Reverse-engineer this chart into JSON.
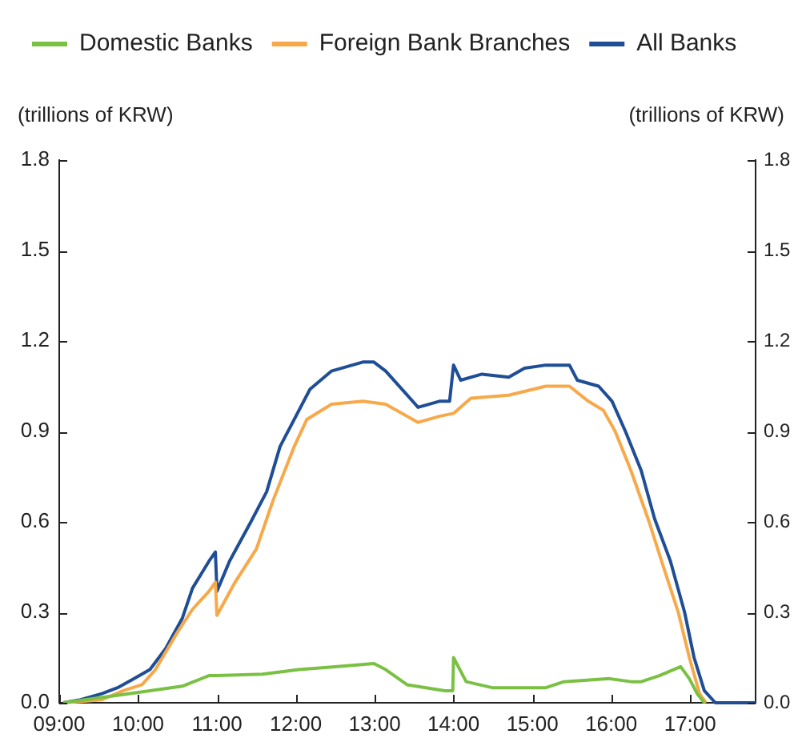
{
  "chart_data": {
    "type": "line",
    "ylabel": "(trillions of KRW)",
    "y2label": "(trillions of KRW)",
    "xlim": [
      9,
      17.83
    ],
    "xticks": [
      {
        "value": 9,
        "label": "09:00"
      },
      {
        "value": 10,
        "label": "10:00"
      },
      {
        "value": 11,
        "label": "11:00"
      },
      {
        "value": 12,
        "label": "12:00"
      },
      {
        "value": 13,
        "label": "13:00"
      },
      {
        "value": 14,
        "label": "14:00"
      },
      {
        "value": 15,
        "label": "15:00"
      },
      {
        "value": 16,
        "label": "16:00"
      },
      {
        "value": 17,
        "label": "17:00"
      }
    ],
    "ylim": [
      0,
      1.8
    ],
    "yticks": [
      {
        "value": 0,
        "label": "0.0"
      },
      0.3,
      0.6,
      0.9,
      1.2,
      1.5,
      1.8
    ],
    "y2lim": [
      0,
      1.8
    ],
    "y2ticks": [
      {
        "value": 0,
        "label": "0.0"
      },
      0.3,
      0.6,
      0.9,
      1.2,
      1.5,
      1.8
    ],
    "grid": false,
    "legend": "top",
    "marker": "none",
    "line_style": "solid",
    "series": [
      {
        "name": "Domestic Banks",
        "color": "#7ac143",
        "x": [
          9.05,
          9.88,
          10.56,
          10.9,
          11,
          11.58,
          12.04,
          12.53,
          12.99,
          13.14,
          13.41,
          13.89,
          13.99,
          14,
          14.16,
          14.49,
          15.17,
          15.4,
          15.98,
          16.25,
          16.38,
          16.61,
          16.88,
          16.99,
          17.09,
          17.18
        ],
        "values": [
          0,
          0.03,
          0.055,
          0.09,
          0.09,
          0.095,
          0.11,
          0.12,
          0.13,
          0.11,
          0.06,
          0.04,
          0.04,
          0.15,
          0.07,
          0.05,
          0.05,
          0.07,
          0.08,
          0.07,
          0.07,
          0.09,
          0.12,
          0.08,
          0.03,
          0
        ]
      },
      {
        "name": "Foreign Bank Branches",
        "color": "#f7a94a",
        "x": [
          9.05,
          9.54,
          9.81,
          10.05,
          10.22,
          10.49,
          10.69,
          10.9,
          10.98,
          11,
          11.23,
          11.5,
          11.71,
          11.98,
          12.14,
          12.45,
          12.85,
          13.14,
          13.55,
          13.82,
          14,
          14.22,
          14.7,
          15.17,
          15.47,
          15.71,
          15.9,
          16.05,
          16.25,
          16.48,
          16.65,
          16.85,
          16.99,
          17.12,
          17.2
        ],
        "values": [
          0,
          0.01,
          0.04,
          0.06,
          0.11,
          0.23,
          0.31,
          0.37,
          0.4,
          0.29,
          0.4,
          0.51,
          0.67,
          0.85,
          0.94,
          0.99,
          1,
          0.99,
          0.93,
          0.95,
          0.96,
          1.01,
          1.02,
          1.05,
          1.05,
          1,
          0.97,
          0.9,
          0.77,
          0.6,
          0.46,
          0.3,
          0.15,
          0.03,
          0
        ]
      },
      {
        "name": "All Banks",
        "color": "#1f4e96",
        "x": [
          9.05,
          9.27,
          9.54,
          9.74,
          9.95,
          10.15,
          10.35,
          10.56,
          10.69,
          10.9,
          10.98,
          11,
          11.16,
          11.43,
          11.63,
          11.8,
          12.18,
          12.45,
          12.85,
          12.99,
          13.14,
          13.55,
          13.82,
          13.95,
          14,
          14.09,
          14.36,
          14.7,
          14.9,
          15.17,
          15.47,
          15.57,
          15.84,
          16.01,
          16.18,
          16.38,
          16.55,
          16.75,
          16.93,
          17.05,
          17.18,
          17.32,
          17.83
        ],
        "values": [
          0,
          0.01,
          0.03,
          0.05,
          0.08,
          0.11,
          0.18,
          0.28,
          0.38,
          0.47,
          0.5,
          0.37,
          0.47,
          0.6,
          0.7,
          0.85,
          1.04,
          1.1,
          1.13,
          1.13,
          1.1,
          0.98,
          1,
          1,
          1.12,
          1.07,
          1.09,
          1.08,
          1.11,
          1.12,
          1.12,
          1.07,
          1.05,
          1,
          0.9,
          0.77,
          0.61,
          0.47,
          0.3,
          0.15,
          0.04,
          0,
          0
        ]
      }
    ]
  }
}
